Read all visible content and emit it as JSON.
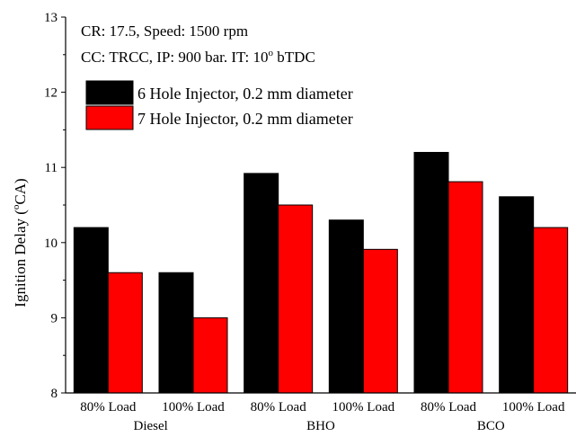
{
  "chart_data": {
    "type": "bar",
    "title": "",
    "xlabel": "",
    "ylabel": "Ignition Delay (",
    "ylabel_sup": "o",
    "ylabel_unit": "CA)",
    "ylim": [
      8,
      13
    ],
    "yticks": [
      8,
      9,
      10,
      11,
      12,
      13
    ],
    "grid": false,
    "categories": [
      "80% Load",
      "100% Load",
      "80% Load",
      "100% Load",
      "80% Load",
      "100% Load"
    ],
    "groups": [
      {
        "label": "Diesel",
        "span": [
          0,
          1
        ]
      },
      {
        "label": "BHO",
        "span": [
          2,
          3
        ]
      },
      {
        "label": "BCO",
        "span": [
          4,
          5
        ]
      }
    ],
    "series": [
      {
        "name": "6 Hole Injector, 0.2 mm diameter",
        "color": "#000000",
        "values": [
          10.2,
          9.6,
          10.92,
          10.3,
          11.2,
          10.61
        ]
      },
      {
        "name": "7 Hole Injector, 0.2 mm diameter",
        "color": "#ff0000",
        "values": [
          9.6,
          9.0,
          10.5,
          9.91,
          10.81,
          10.2
        ]
      }
    ],
    "annotations": {
      "line1": "CR: 17.5, Speed: 1500 rpm",
      "line2_prefix": "CC: TRCC, IP: 900 bar. IT: 10",
      "line2_sup": "o",
      "line2_suffix": " bTDC"
    },
    "legend_position": "top-left"
  }
}
